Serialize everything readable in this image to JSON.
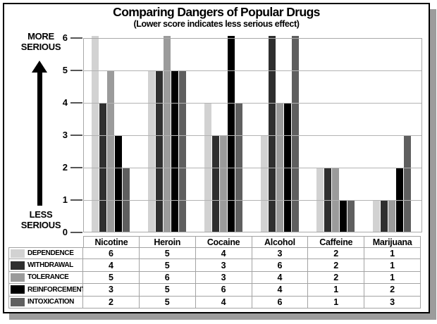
{
  "chart_data": {
    "type": "bar",
    "title": "Comparing Dangers of Popular Drugs",
    "subtitle": "(Lower score indicates less serious effect)",
    "categories": [
      "Nicotine",
      "Heroin",
      "Cocaine",
      "Alcohol",
      "Caffeine",
      "Marijuana"
    ],
    "series": [
      {
        "name": "DEPENDENCE",
        "color": "#d2d2d2",
        "values": [
          6,
          5,
          4,
          3,
          2,
          1
        ]
      },
      {
        "name": "WITHDRAWAL",
        "color": "#2f2f2f",
        "values": [
          4,
          5,
          3,
          6,
          2,
          1
        ]
      },
      {
        "name": "TOLERANCE",
        "color": "#9b9b9b",
        "values": [
          5,
          6,
          3,
          4,
          2,
          1
        ]
      },
      {
        "name": "REINFORCEMENT",
        "color": "#000000",
        "values": [
          3,
          5,
          6,
          4,
          1,
          2
        ]
      },
      {
        "name": "INTOXICATION",
        "color": "#5f5f5f",
        "values": [
          2,
          5,
          4,
          6,
          1,
          3
        ]
      }
    ],
    "ylim": [
      0,
      6
    ],
    "yticks": [
      0,
      1,
      2,
      3,
      4,
      5,
      6
    ],
    "grid": true,
    "legend_position": "table-left-column",
    "data_table_shown": true,
    "axis_annotations": {
      "more": [
        "MORE",
        "SERIOUS"
      ],
      "less": [
        "LESS",
        "SERIOUS"
      ]
    },
    "colors": {
      "gridline": "#b3b3b3",
      "table_border": "#a3a3a3",
      "frame_border": "#000000",
      "frame_shadow": "#9c9c9c"
    }
  }
}
